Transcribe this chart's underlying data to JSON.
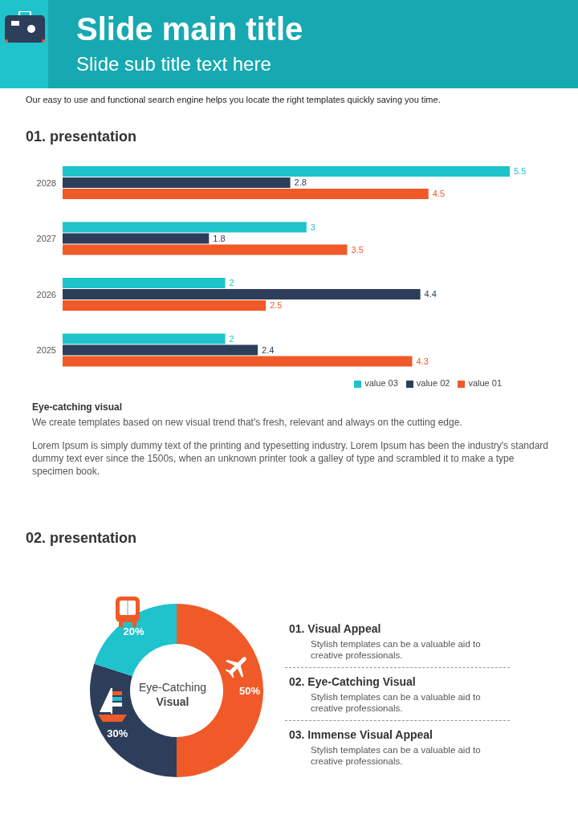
{
  "chart_data": [
    {
      "type": "bar",
      "orientation": "horizontal",
      "title": "01. presentation",
      "annotations": [
        "Slide main title",
        "Slide sub title text here",
        "Our easy to use and functional search engine  helps you locate the right templates quickly saving you time.",
        "Eye-catching visual",
        "We create templates based on new visual trend that's fresh, relevant and always on the cutting edge.",
        "Lorem Ipsum is simply dummy text of the printing and typesetting industry. Lorem Ipsum has been the industry's standard dummy text ever since the 1500s, when an unknown printer took a galley of type and scrambled it to make a type specimen book."
      ],
      "categories": [
        "2028",
        "2027",
        "2026",
        "2025"
      ],
      "series": [
        {
          "name": "value 03",
          "color": "#1ec3cb",
          "values": [
            5.5,
            3,
            2,
            2
          ]
        },
        {
          "name": "value 02",
          "color": "#2c3e5a",
          "values": [
            2.8,
            1.8,
            4.4,
            2.4
          ]
        },
        {
          "name": "value 01",
          "color": "#f05a28",
          "values": [
            4.5,
            3.5,
            2.5,
            4.3
          ]
        }
      ],
      "data_labels": true,
      "legend": "bottom right"
    },
    {
      "type": "donut",
      "title": "02. presentation",
      "annotations": [
        "Eye-Catching",
        "Visual",
        "01. Visual Appeal",
        "Stylish templates can be a valuable aid to creative professionals.",
        "02. Eye-Catching Visual",
        "Stylish templates can be a valuable aid to creative professionals.",
        "03. Immense Visual Appeal",
        "Stylish templates can be a valuable aid to creative professionals."
      ],
      "categories": [
        null,
        null,
        null
      ],
      "values": [
        50,
        30,
        20
      ],
      "colors": [
        "#f05a28",
        "#2c3e5a",
        "#1ec3cb"
      ],
      "value_labels": [
        "50%",
        "30%",
        "20%"
      ]
    }
  ]
}
